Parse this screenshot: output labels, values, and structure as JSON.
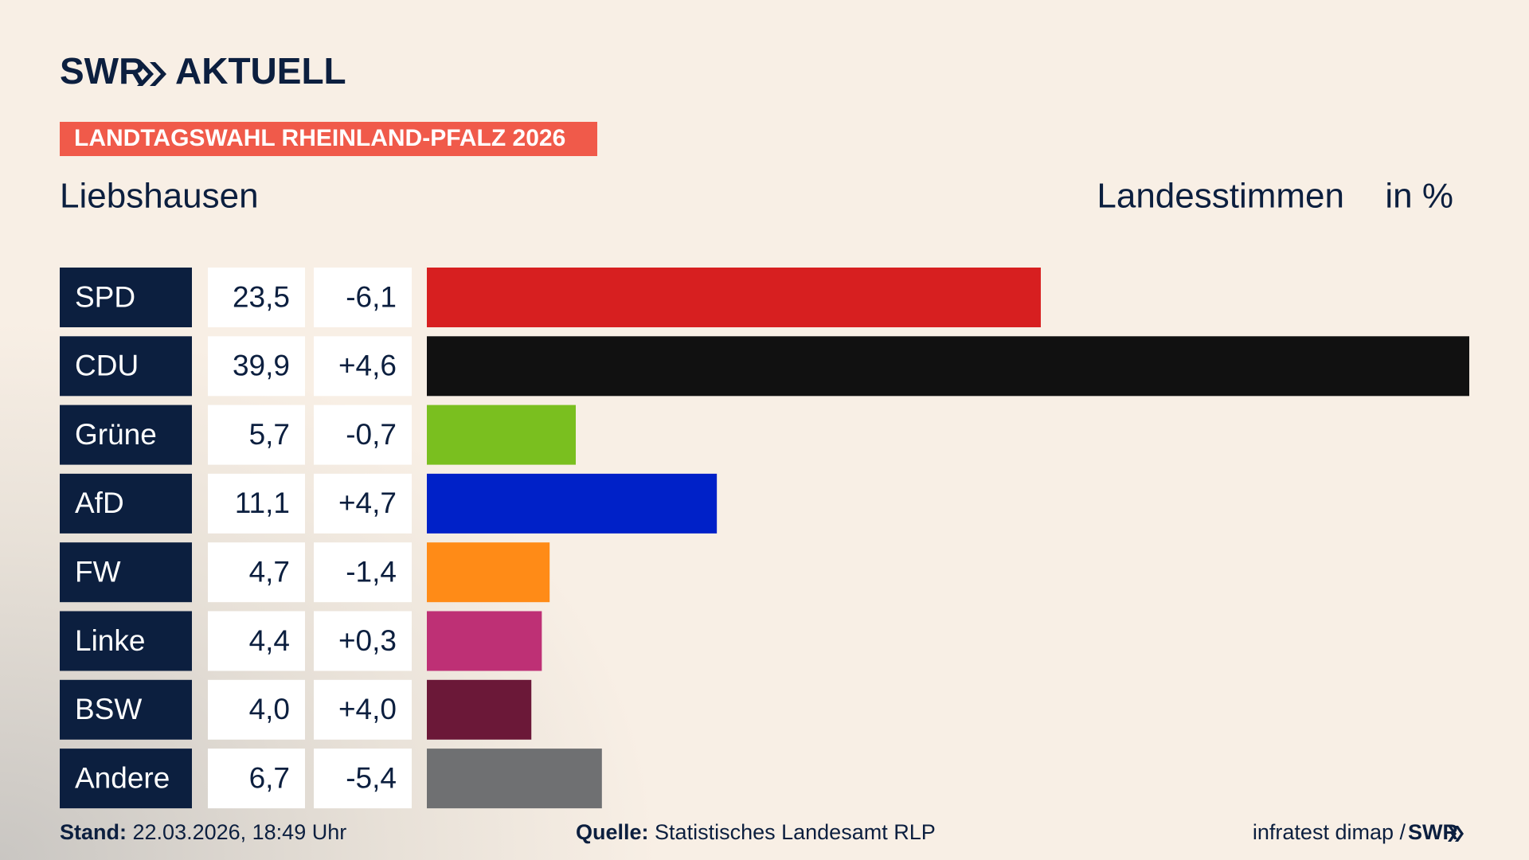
{
  "brand": {
    "name": "SWR",
    "product": "AKTUELL"
  },
  "tag": "LANDTAGSWAHL RHEINLAND-PFALZ 2026",
  "chart_data": {
    "type": "bar",
    "title": "Liebshausen",
    "subtitle": "Landesstimmen",
    "unit": "in %",
    "categories": [
      "SPD",
      "CDU",
      "Grüne",
      "AfD",
      "FW",
      "Linke",
      "BSW",
      "Andere"
    ],
    "values": [
      23.5,
      39.9,
      5.7,
      11.1,
      4.7,
      4.4,
      4.0,
      6.7
    ],
    "value_labels": [
      "23,5",
      "39,9",
      "5,7",
      "11,1",
      "4,7",
      "4,4",
      "4,0",
      "6,7"
    ],
    "changes": [
      -6.1,
      4.6,
      -0.7,
      4.7,
      -1.4,
      0.3,
      4.0,
      -5.4
    ],
    "change_labels": [
      "-6,1",
      "+4,6",
      "-0,7",
      "+4,7",
      "-1,4",
      "+0,3",
      "+4,0",
      "-5,4"
    ],
    "colors": [
      "#d71f20",
      "#111111",
      "#7abf1f",
      "#0021c8",
      "#ff8b17",
      "#be3075",
      "#6b1838",
      "#6f7072"
    ]
  },
  "footer": {
    "stand_label": "Stand:",
    "stand": "22.03.2026, 18:49 Uhr",
    "source_label": "Quelle:",
    "source": "Statistisches Landesamt RLP",
    "credit": "infratest dimap /",
    "credit_brand": "SWR"
  }
}
